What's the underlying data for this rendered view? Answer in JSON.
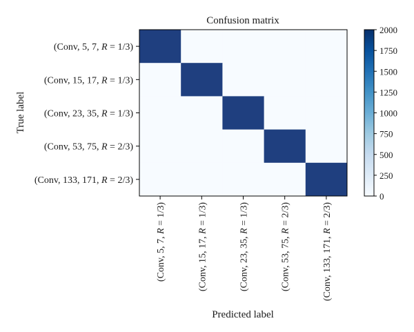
{
  "chart_data": {
    "type": "heatmap",
    "title": "Confusion matrix",
    "xlabel": "Predicted label",
    "ylabel": "True label",
    "row_labels": [
      {
        "prefix": "(Conv, 5, 7, ",
        "var": "R",
        "suffix": " = 1/3)"
      },
      {
        "prefix": "(Conv, 15, 17, ",
        "var": "R",
        "suffix": " = 1/3)"
      },
      {
        "prefix": "(Conv, 23, 35, ",
        "var": "R",
        "suffix": " = 1/3)"
      },
      {
        "prefix": "(Conv, 53, 75, ",
        "var": "R",
        "suffix": " = 2/3)"
      },
      {
        "prefix": "(Conv, 133, 171, ",
        "var": "R",
        "suffix": " = 2/3)"
      }
    ],
    "col_labels": [
      {
        "prefix": "(Conv, 5, 7, ",
        "var": "R",
        "suffix": " = 1/3)"
      },
      {
        "prefix": "(Conv, 15, 17, ",
        "var": "R",
        "suffix": " = 1/3)"
      },
      {
        "prefix": "(Conv, 23, 35, ",
        "var": "R",
        "suffix": " = 1/3)"
      },
      {
        "prefix": "(Conv, 53, 75, ",
        "var": "R",
        "suffix": " = 2/3)"
      },
      {
        "prefix": "(Conv, 133, 171, ",
        "var": "R",
        "suffix": " = 2/3)"
      }
    ],
    "matrix": [
      [
        2000,
        0,
        0,
        0,
        0
      ],
      [
        0,
        2000,
        0,
        0,
        0
      ],
      [
        0,
        0,
        2000,
        0,
        0
      ],
      [
        0,
        0,
        0,
        2000,
        0
      ],
      [
        0,
        0,
        0,
        0,
        2000
      ]
    ],
    "colorbar": {
      "min": 0,
      "max": 2000,
      "ticks": [
        0,
        250,
        500,
        750,
        1000,
        1250,
        1500,
        1750,
        2000
      ],
      "colormap": "Blues",
      "low_color": "#f7fbff",
      "high_color": "#08306b"
    },
    "grid": false
  }
}
